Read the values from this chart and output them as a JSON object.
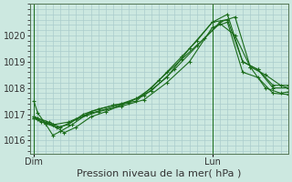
{
  "background_color": "#cce8e0",
  "grid_color": "#aacccc",
  "line_color": "#1a6b1a",
  "marker_color": "#1a6b1a",
  "xlabel": "Pression niveau de la mer( hPa )",
  "xlabel_fontsize": 8,
  "tick_fontsize": 7,
  "ylim": [
    1015.5,
    1021.2
  ],
  "yticks": [
    1016,
    1017,
    1018,
    1019,
    1020
  ],
  "xlim": [
    0,
    34
  ],
  "dim_x": 0.5,
  "lun_x": 24.0,
  "xtick_positions": [
    0.5,
    24.0
  ],
  "xtick_labels": [
    "Dim",
    "Lun"
  ],
  "series": [
    [
      0.5,
      1016.9,
      1.0,
      1016.85,
      2.0,
      1016.7,
      3.0,
      1016.6,
      4.5,
      1016.3,
      6.0,
      1016.5,
      8.0,
      1016.9,
      10.0,
      1017.1,
      12.0,
      1017.35,
      14.0,
      1017.6,
      16.0,
      1018.0,
      18.0,
      1018.6,
      20.0,
      1019.2,
      22.0,
      1019.8,
      24.0,
      1020.5,
      26.0,
      1020.8,
      28.0,
      1019.0,
      30.0,
      1018.7,
      32.0,
      1018.0,
      34.0,
      1018.0
    ],
    [
      0.5,
      1016.85,
      1.0,
      1016.8,
      2.0,
      1016.65,
      3.5,
      1016.5,
      5.0,
      1016.6,
      7.0,
      1017.0,
      9.0,
      1017.2,
      12.0,
      1017.4,
      15.0,
      1017.7,
      18.0,
      1018.4,
      21.0,
      1019.5,
      24.0,
      1020.5,
      26.0,
      1020.6,
      28.0,
      1019.0,
      30.0,
      1018.7,
      32.0,
      1018.1,
      34.0,
      1018.1
    ],
    [
      0.5,
      1017.5,
      1.0,
      1017.05,
      2.0,
      1016.65,
      3.0,
      1016.2,
      4.0,
      1016.35,
      5.5,
      1016.6,
      8.0,
      1017.1,
      11.0,
      1017.35,
      14.0,
      1017.5,
      17.0,
      1018.3,
      20.0,
      1019.1,
      23.0,
      1019.9,
      25.0,
      1020.45,
      27.0,
      1020.0,
      29.0,
      1018.8,
      31.0,
      1018.0,
      33.0,
      1017.8,
      34.0,
      1017.85
    ],
    [
      0.5,
      1016.9,
      1.0,
      1016.85,
      2.5,
      1016.7,
      4.0,
      1016.5,
      6.0,
      1016.8,
      9.0,
      1017.1,
      12.0,
      1017.3,
      15.0,
      1017.55,
      18.0,
      1018.2,
      21.0,
      1019.0,
      24.0,
      1020.3,
      26.0,
      1020.5,
      28.0,
      1018.6,
      30.0,
      1018.4,
      32.0,
      1017.8,
      34.0,
      1017.75
    ],
    [
      0.5,
      1016.85,
      1.5,
      1016.7,
      3.0,
      1016.6,
      5.0,
      1016.7,
      7.5,
      1017.0,
      10.0,
      1017.2,
      13.0,
      1017.45,
      16.0,
      1017.9,
      19.0,
      1018.7,
      22.0,
      1019.6,
      25.0,
      1020.5,
      27.0,
      1020.7,
      29.0,
      1018.8,
      31.0,
      1018.5,
      33.0,
      1018.1,
      34.0,
      1018.0
    ]
  ]
}
